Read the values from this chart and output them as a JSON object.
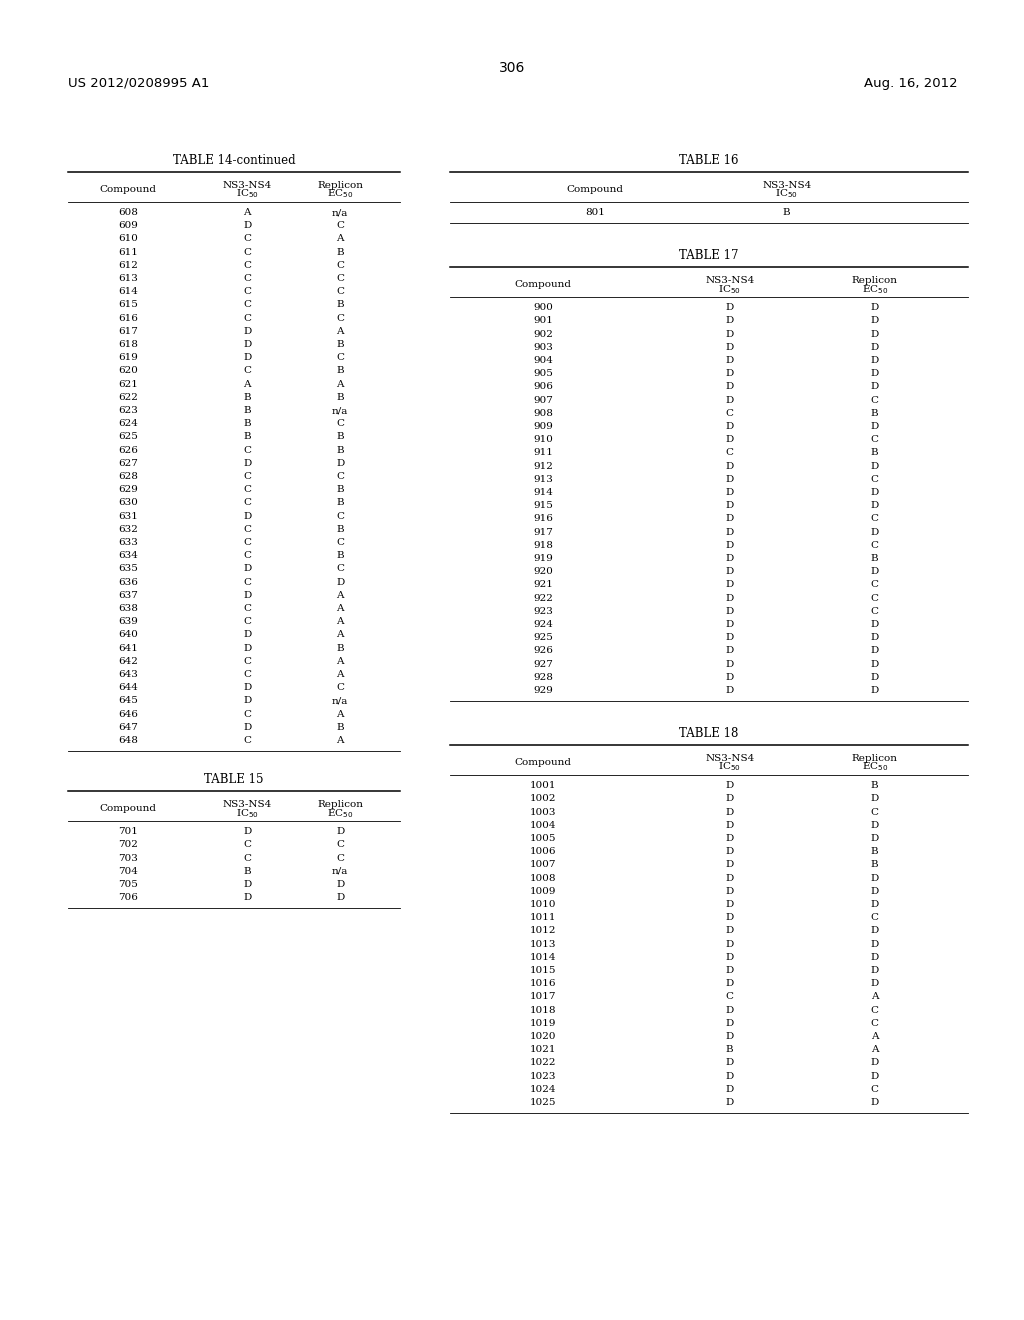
{
  "page_number": "306",
  "left_header": "US 2012/0208995 A1",
  "right_header": "Aug. 16, 2012",
  "table14_continued": {
    "title": "TABLE 14-continued",
    "rows": [
      [
        "608",
        "A",
        "n/a"
      ],
      [
        "609",
        "D",
        "C"
      ],
      [
        "610",
        "C",
        "A"
      ],
      [
        "611",
        "C",
        "B"
      ],
      [
        "612",
        "C",
        "C"
      ],
      [
        "613",
        "C",
        "C"
      ],
      [
        "614",
        "C",
        "C"
      ],
      [
        "615",
        "C",
        "B"
      ],
      [
        "616",
        "C",
        "C"
      ],
      [
        "617",
        "D",
        "A"
      ],
      [
        "618",
        "D",
        "B"
      ],
      [
        "619",
        "D",
        "C"
      ],
      [
        "620",
        "C",
        "B"
      ],
      [
        "621",
        "A",
        "A"
      ],
      [
        "622",
        "B",
        "B"
      ],
      [
        "623",
        "B",
        "n/a"
      ],
      [
        "624",
        "B",
        "C"
      ],
      [
        "625",
        "B",
        "B"
      ],
      [
        "626",
        "C",
        "B"
      ],
      [
        "627",
        "D",
        "D"
      ],
      [
        "628",
        "C",
        "C"
      ],
      [
        "629",
        "C",
        "B"
      ],
      [
        "630",
        "C",
        "B"
      ],
      [
        "631",
        "D",
        "C"
      ],
      [
        "632",
        "C",
        "B"
      ],
      [
        "633",
        "C",
        "C"
      ],
      [
        "634",
        "C",
        "B"
      ],
      [
        "635",
        "D",
        "C"
      ],
      [
        "636",
        "C",
        "D"
      ],
      [
        "637",
        "D",
        "A"
      ],
      [
        "638",
        "C",
        "A"
      ],
      [
        "639",
        "C",
        "A"
      ],
      [
        "640",
        "D",
        "A"
      ],
      [
        "641",
        "D",
        "B"
      ],
      [
        "642",
        "C",
        "A"
      ],
      [
        "643",
        "C",
        "A"
      ],
      [
        "644",
        "D",
        "C"
      ],
      [
        "645",
        "D",
        "n/a"
      ],
      [
        "646",
        "C",
        "A"
      ],
      [
        "647",
        "D",
        "B"
      ],
      [
        "648",
        "C",
        "A"
      ]
    ]
  },
  "table15": {
    "title": "TABLE 15",
    "rows": [
      [
        "701",
        "D",
        "D"
      ],
      [
        "702",
        "C",
        "C"
      ],
      [
        "703",
        "C",
        "C"
      ],
      [
        "704",
        "B",
        "n/a"
      ],
      [
        "705",
        "D",
        "D"
      ],
      [
        "706",
        "D",
        "D"
      ]
    ]
  },
  "table16": {
    "title": "TABLE 16",
    "rows": [
      [
        "801",
        "B"
      ]
    ]
  },
  "table17": {
    "title": "TABLE 17",
    "rows": [
      [
        "900",
        "D",
        "D"
      ],
      [
        "901",
        "D",
        "D"
      ],
      [
        "902",
        "D",
        "D"
      ],
      [
        "903",
        "D",
        "D"
      ],
      [
        "904",
        "D",
        "D"
      ],
      [
        "905",
        "D",
        "D"
      ],
      [
        "906",
        "D",
        "D"
      ],
      [
        "907",
        "D",
        "C"
      ],
      [
        "908",
        "C",
        "B"
      ],
      [
        "909",
        "D",
        "D"
      ],
      [
        "910",
        "D",
        "C"
      ],
      [
        "911",
        "C",
        "B"
      ],
      [
        "912",
        "D",
        "D"
      ],
      [
        "913",
        "D",
        "C"
      ],
      [
        "914",
        "D",
        "D"
      ],
      [
        "915",
        "D",
        "D"
      ],
      [
        "916",
        "D",
        "C"
      ],
      [
        "917",
        "D",
        "D"
      ],
      [
        "918",
        "D",
        "C"
      ],
      [
        "919",
        "D",
        "B"
      ],
      [
        "920",
        "D",
        "D"
      ],
      [
        "921",
        "D",
        "C"
      ],
      [
        "922",
        "D",
        "C"
      ],
      [
        "923",
        "D",
        "C"
      ],
      [
        "924",
        "D",
        "D"
      ],
      [
        "925",
        "D",
        "D"
      ],
      [
        "926",
        "D",
        "D"
      ],
      [
        "927",
        "D",
        "D"
      ],
      [
        "928",
        "D",
        "D"
      ],
      [
        "929",
        "D",
        "D"
      ]
    ]
  },
  "table18": {
    "title": "TABLE 18",
    "rows": [
      [
        "1001",
        "D",
        "B"
      ],
      [
        "1002",
        "D",
        "D"
      ],
      [
        "1003",
        "D",
        "C"
      ],
      [
        "1004",
        "D",
        "D"
      ],
      [
        "1005",
        "D",
        "D"
      ],
      [
        "1006",
        "D",
        "B"
      ],
      [
        "1007",
        "D",
        "B"
      ],
      [
        "1008",
        "D",
        "D"
      ],
      [
        "1009",
        "D",
        "D"
      ],
      [
        "1010",
        "D",
        "D"
      ],
      [
        "1011",
        "D",
        "C"
      ],
      [
        "1012",
        "D",
        "D"
      ],
      [
        "1013",
        "D",
        "D"
      ],
      [
        "1014",
        "D",
        "D"
      ],
      [
        "1015",
        "D",
        "D"
      ],
      [
        "1016",
        "D",
        "D"
      ],
      [
        "1017",
        "C",
        "A"
      ],
      [
        "1018",
        "D",
        "C"
      ],
      [
        "1019",
        "D",
        "C"
      ],
      [
        "1020",
        "D",
        "A"
      ],
      [
        "1021",
        "B",
        "A"
      ],
      [
        "1022",
        "D",
        "D"
      ],
      [
        "1023",
        "D",
        "D"
      ],
      [
        "1024",
        "D",
        "C"
      ],
      [
        "1025",
        "D",
        "D"
      ]
    ]
  }
}
